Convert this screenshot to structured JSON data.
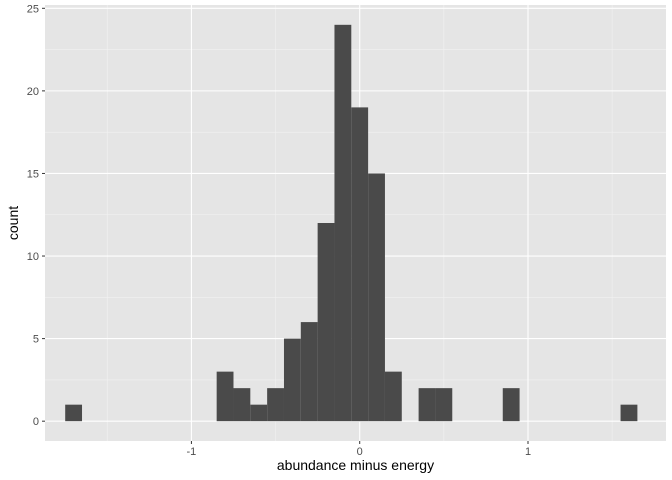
{
  "chart_data": {
    "type": "bar",
    "subtype": "histogram",
    "xlabel": "abundance minus energy",
    "ylabel": "count",
    "x_ticks": [
      -1,
      0,
      1
    ],
    "x_tick_labels": [
      "-1",
      "0",
      "1"
    ],
    "y_ticks": [
      0,
      5,
      10,
      15,
      20,
      25
    ],
    "y_tick_labels": [
      "0",
      "5",
      "10",
      "15",
      "20",
      "25"
    ],
    "xlim": [
      -1.87,
      1.82
    ],
    "ylim": [
      -1.2,
      25.2
    ],
    "grid": true,
    "bin_width": 0.1,
    "bars": [
      {
        "x_start": -1.75,
        "x_end": -1.65,
        "count": 1
      },
      {
        "x_start": -0.85,
        "x_end": -0.75,
        "count": 3
      },
      {
        "x_start": -0.75,
        "x_end": -0.65,
        "count": 2
      },
      {
        "x_start": -0.65,
        "x_end": -0.55,
        "count": 1
      },
      {
        "x_start": -0.55,
        "x_end": -0.45,
        "count": 2
      },
      {
        "x_start": -0.45,
        "x_end": -0.35,
        "count": 5
      },
      {
        "x_start": -0.35,
        "x_end": -0.25,
        "count": 6
      },
      {
        "x_start": -0.25,
        "x_end": -0.15,
        "count": 12
      },
      {
        "x_start": -0.15,
        "x_end": -0.05,
        "count": 24
      },
      {
        "x_start": -0.05,
        "x_end": 0.05,
        "count": 19
      },
      {
        "x_start": 0.05,
        "x_end": 0.15,
        "count": 15
      },
      {
        "x_start": 0.15,
        "x_end": 0.25,
        "count": 3
      },
      {
        "x_start": 0.35,
        "x_end": 0.45,
        "count": 2
      },
      {
        "x_start": 0.45,
        "x_end": 0.55,
        "count": 2
      },
      {
        "x_start": 0.85,
        "x_end": 0.95,
        "count": 2
      },
      {
        "x_start": 1.55,
        "x_end": 1.65,
        "count": 1
      }
    ],
    "colors": {
      "panel": "#e5e5e5",
      "grid_major": "#ffffff",
      "bar": "#4a4a4a",
      "tick": "#333333"
    }
  }
}
